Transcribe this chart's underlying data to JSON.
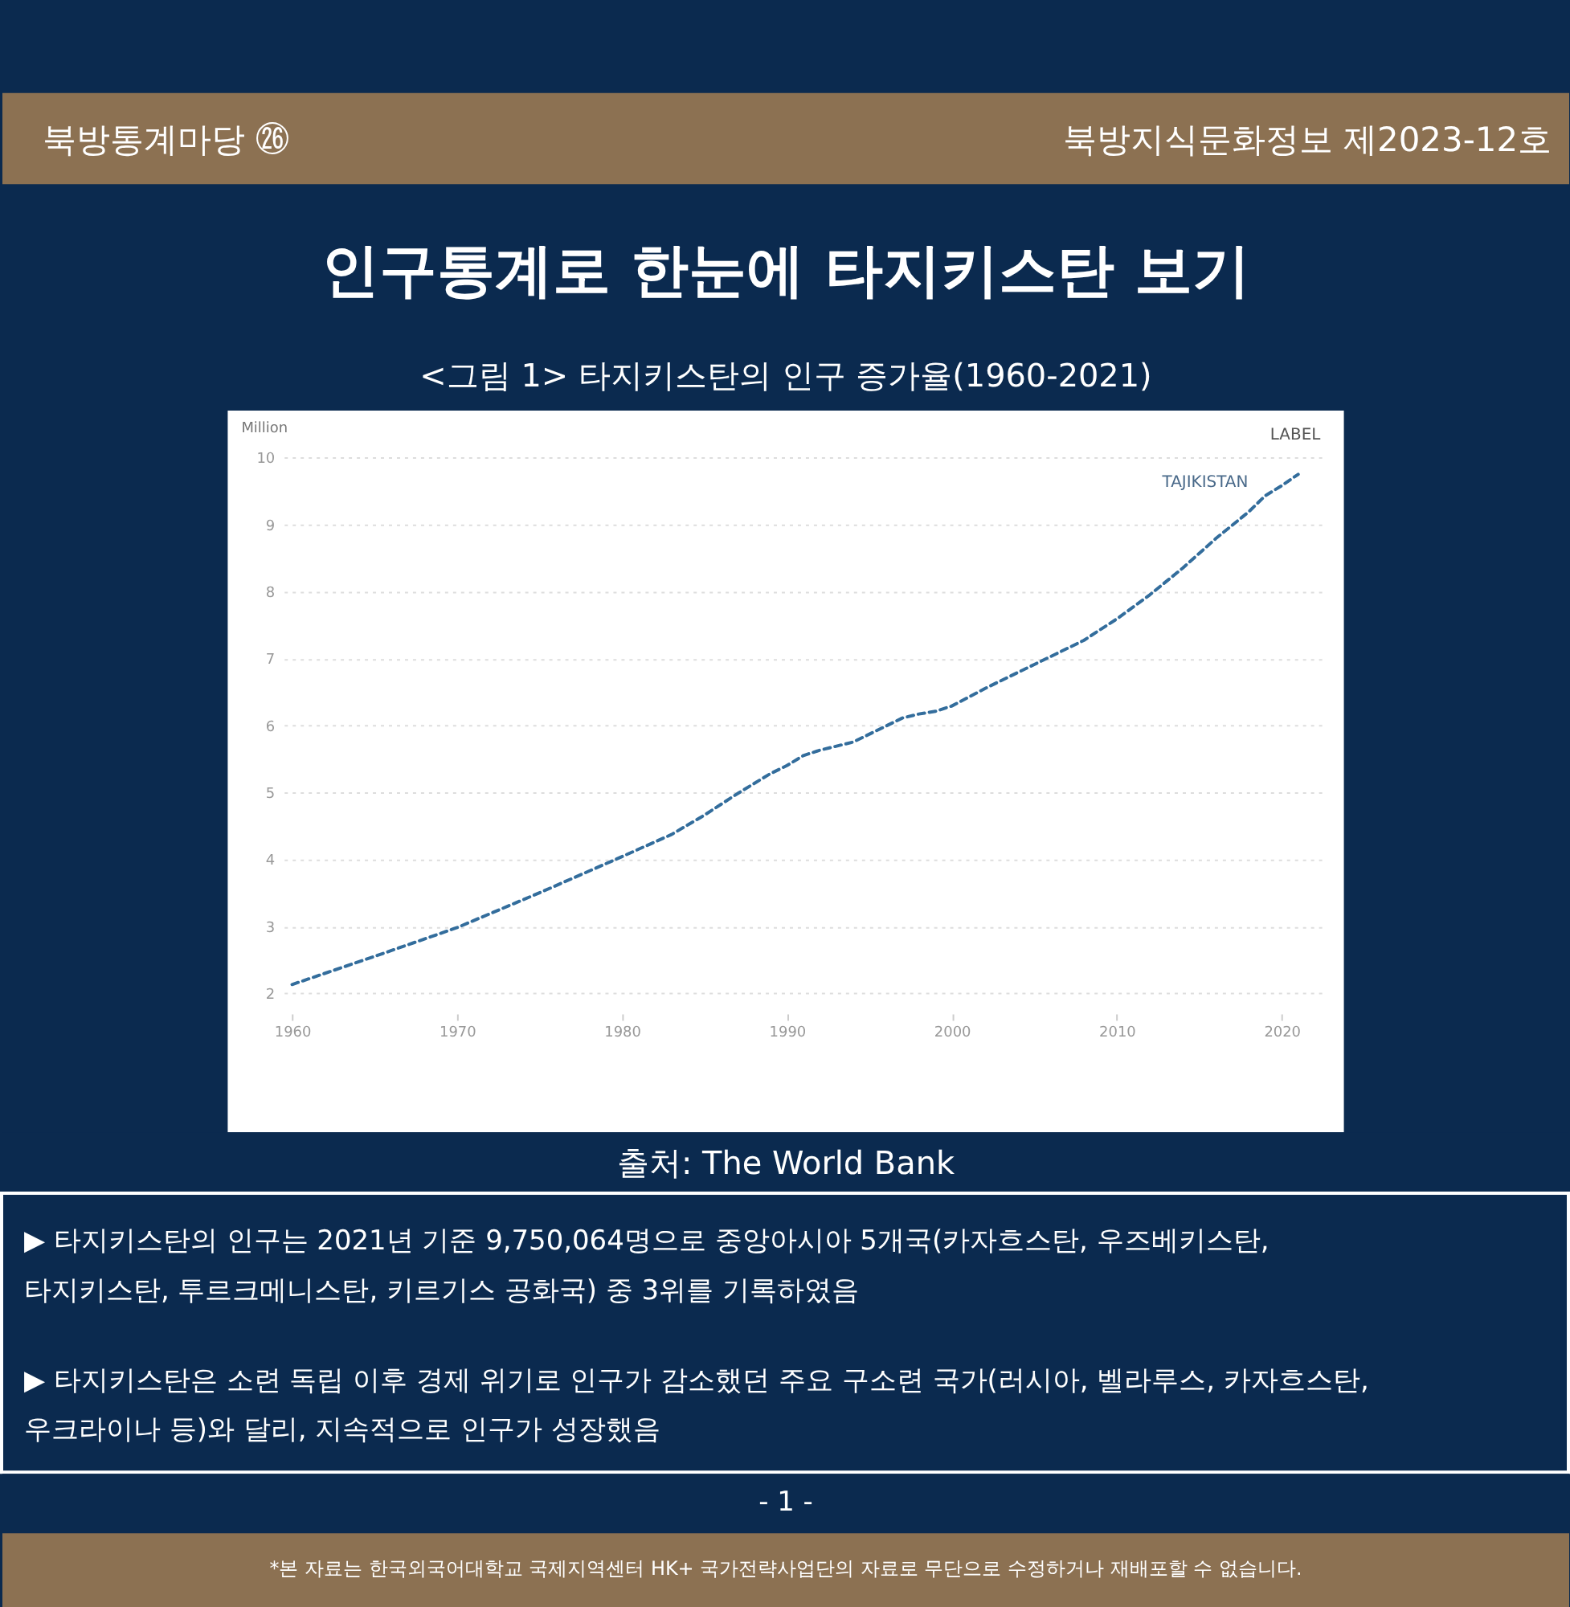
{
  "chart_data": {
    "type": "line",
    "title": "인구통계로 한눈에 타지키스탄 보기",
    "subtitle": "<그림 1> 타지키스탄의 인구 증가율(1960-2021)",
    "ylabel": "Million",
    "x": [
      1960,
      1965,
      1970,
      1975,
      1980,
      1983,
      1985,
      1987,
      1989,
      1990,
      1991,
      1992,
      1994,
      1996,
      1997,
      1998,
      1999,
      2000,
      2002,
      2005,
      2008,
      2010,
      2012,
      2014,
      2016,
      2018,
      2019,
      2020,
      2021
    ],
    "series": [
      {
        "name": "TAJIKISTAN",
        "color": "#336d9c",
        "values": [
          2.13,
          2.55,
          2.98,
          3.5,
          4.04,
          4.37,
          4.66,
          4.98,
          5.28,
          5.4,
          5.55,
          5.63,
          5.75,
          5.99,
          6.11,
          6.17,
          6.21,
          6.29,
          6.55,
          6.91,
          7.27,
          7.59,
          7.95,
          8.35,
          8.79,
          9.19,
          9.43,
          9.58,
          9.75
        ]
      }
    ],
    "xlim": [
      1959.5,
      2022.7
    ],
    "ylim": [
      2,
      10
    ],
    "xticks": [
      1960,
      1970,
      1980,
      1990,
      2000,
      2010,
      2020
    ],
    "yticks": [
      2,
      3,
      4,
      5,
      6,
      7,
      8,
      9,
      10
    ],
    "grid": "y",
    "line_style": "dashed",
    "annotations": [
      "북방통계마당 ㉖",
      "북방지식문화정보 제2023-12호",
      "LABEL",
      "출처: The World Bank",
      "▶ 타지키스탄의 인구는 2021년 기준 9,750,064명으로 중앙아시아 5개국(카자흐스탄, 우즈베키스탄,\n타지키스탄, 투르크메니스탄, 키르기스 공화국) 중 3위를 기록하였음",
      "▶ 타지키스탄은 소련 독립 이후 경제 위기로 인구가 감소했던 주요 구소련 국가(러시아, 벨라루스, 카자흐스탄,\n우크라이나 등)와 달리, 지속적으로 인구가 성장했음",
      "- 1 -",
      "*본 자료는 한국외국어대학교 국제지역센터 HK+ 국가전략사업단의 자료로 무단으로 수정하거나 재배포할 수 없습니다."
    ]
  }
}
